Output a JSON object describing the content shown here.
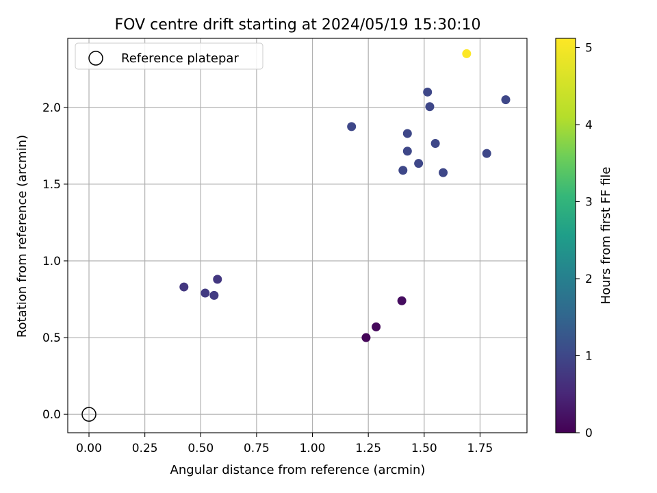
{
  "chart_data": {
    "type": "scatter",
    "title": "FOV centre drift starting at 2024/05/19 15:30:10",
    "xlabel": "Angular distance from reference (arcmin)",
    "ylabel": "Rotation from reference (arcmin)",
    "xlim": [
      -0.095,
      1.96
    ],
    "ylim": [
      -0.12,
      2.45
    ],
    "xticks": [
      "0.00",
      "0.25",
      "0.50",
      "0.75",
      "1.00",
      "1.25",
      "1.50",
      "1.75"
    ],
    "xtick_values": [
      0,
      0.25,
      0.5,
      0.75,
      1.0,
      1.25,
      1.5,
      1.75
    ],
    "yticks": [
      "0.0",
      "0.5",
      "1.0",
      "1.5",
      "2.0"
    ],
    "ytick_values": [
      0,
      0.5,
      1.0,
      1.5,
      2.0
    ],
    "grid": true,
    "legend": {
      "position": "top-left",
      "entries": [
        "Reference platepar"
      ]
    },
    "reference_point": {
      "x": 0.0,
      "y": 0.0
    },
    "colorbar": {
      "label": "Hours from first FF file",
      "colormap": "viridis",
      "range": [
        0,
        5.12
      ],
      "ticks": [
        "0",
        "1",
        "2",
        "3",
        "4",
        "5"
      ],
      "tick_values": [
        0,
        1,
        2,
        3,
        4,
        5
      ]
    },
    "points": [
      {
        "x": 1.24,
        "y": 0.5,
        "c": 0.05
      },
      {
        "x": 1.285,
        "y": 0.57,
        "c": 0.1
      },
      {
        "x": 1.4,
        "y": 0.74,
        "c": 0.15
      },
      {
        "x": 0.425,
        "y": 0.83,
        "c": 0.75
      },
      {
        "x": 0.52,
        "y": 0.79,
        "c": 0.8
      },
      {
        "x": 0.56,
        "y": 0.775,
        "c": 0.8
      },
      {
        "x": 0.575,
        "y": 0.88,
        "c": 0.75
      },
      {
        "x": 1.175,
        "y": 1.875,
        "c": 1.0
      },
      {
        "x": 1.405,
        "y": 1.59,
        "c": 1.0
      },
      {
        "x": 1.425,
        "y": 1.83,
        "c": 1.0
      },
      {
        "x": 1.425,
        "y": 1.715,
        "c": 1.0
      },
      {
        "x": 1.475,
        "y": 1.635,
        "c": 1.0
      },
      {
        "x": 1.515,
        "y": 2.1,
        "c": 1.0
      },
      {
        "x": 1.525,
        "y": 2.005,
        "c": 1.0
      },
      {
        "x": 1.55,
        "y": 1.765,
        "c": 1.0
      },
      {
        "x": 1.585,
        "y": 1.575,
        "c": 1.0
      },
      {
        "x": 1.78,
        "y": 1.7,
        "c": 1.0
      },
      {
        "x": 1.865,
        "y": 2.05,
        "c": 1.0
      },
      {
        "x": 1.69,
        "y": 2.35,
        "c": 5.1
      }
    ]
  }
}
